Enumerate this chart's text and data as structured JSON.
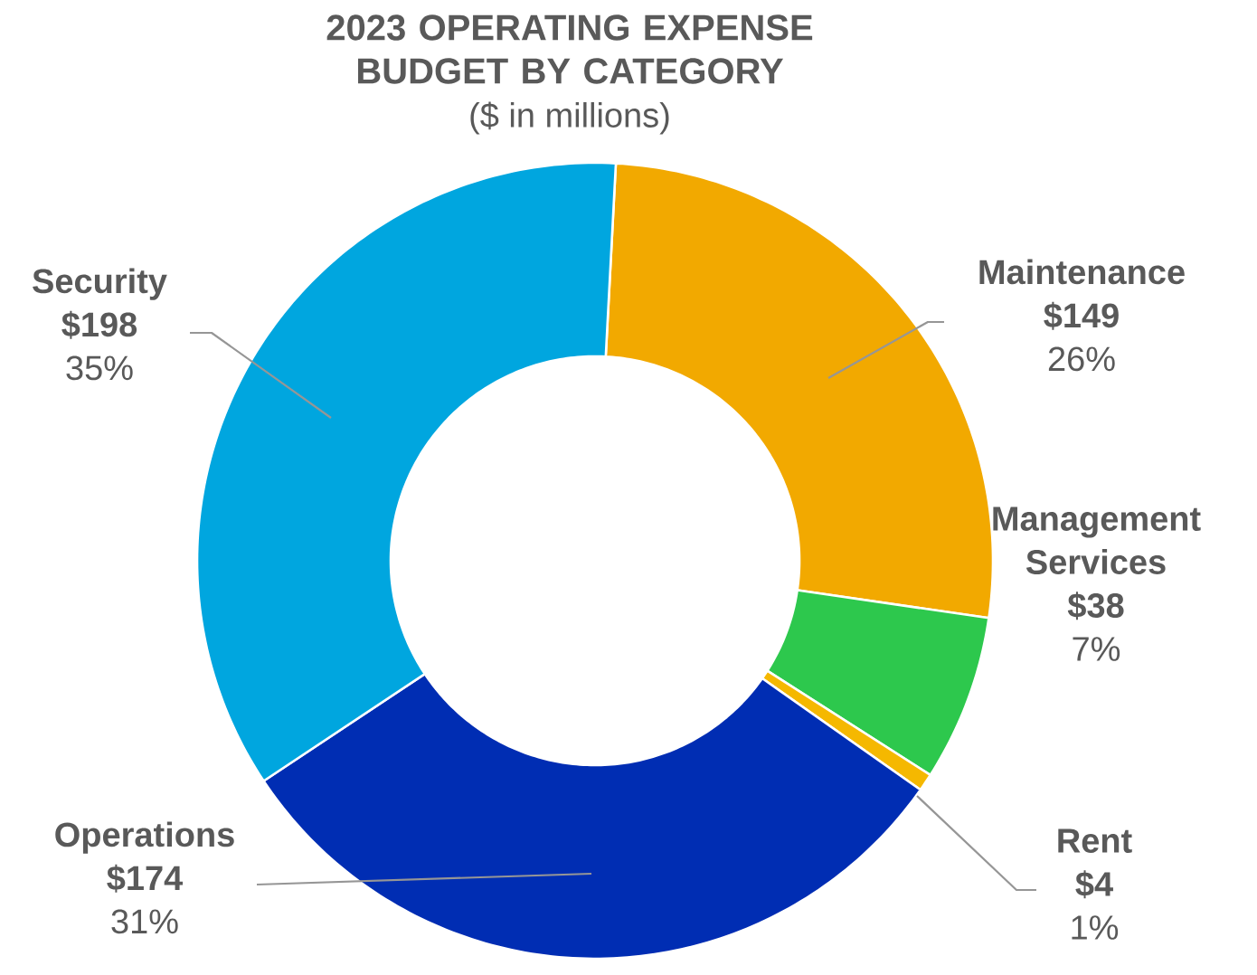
{
  "chart_data": {
    "type": "donut",
    "title": "2023 OPERATING EXPENSE BUDGET BY CATEGORY",
    "subtitle": "($ in millions)",
    "categories": [
      "Maintenance",
      "Management Services",
      "Rent",
      "Operations",
      "Security"
    ],
    "values": [
      149,
      38,
      4,
      174,
      198
    ],
    "colors": [
      "#f2a900",
      "#2dc84d",
      "#f5b800",
      "#002db3",
      "#00a6df"
    ],
    "value_labels": [
      "$149",
      "$38",
      "$4",
      "$174",
      "$198"
    ],
    "annotations": [
      "26%",
      "7%",
      "1%",
      "31%",
      "35%"
    ]
  }
}
